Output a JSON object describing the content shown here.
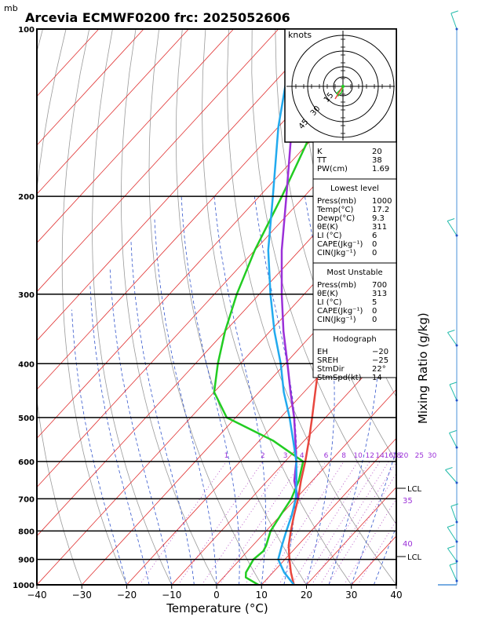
{
  "header": {
    "title": "Arcevia ECMWF0200 frc: 2025052606",
    "pressure_unit": "mb"
  },
  "axes": {
    "xlabel": "Temperature (°C)",
    "ylabel_right": "Mixing Ratio (g/kg)",
    "x_ticks": [
      -40,
      -30,
      -20,
      -10,
      0,
      10,
      20,
      30,
      40
    ],
    "p_ticks": [
      100,
      200,
      300,
      400,
      500,
      600,
      700,
      800,
      900,
      1000
    ],
    "p_tick_labels": [
      "100",
      "200",
      "300",
      "400",
      "500",
      "600",
      "700",
      "800",
      "900",
      "1000"
    ],
    "x_tick_labels": [
      "−40",
      "−30",
      "−20",
      "−10",
      "0",
      "10",
      "20",
      "30",
      "40"
    ]
  },
  "hodograph": {
    "units_label": "knots",
    "ring_labels": [
      "15",
      "30",
      "45"
    ]
  },
  "indices": {
    "basic": [
      {
        "label": "K",
        "value": "20"
      },
      {
        "label": "TT",
        "value": "38"
      },
      {
        "label": "PW(cm)",
        "value": "1.69"
      }
    ],
    "lowest_level": {
      "title": "Lowest level",
      "rows": [
        {
          "label": "Press(mb)",
          "value": "1000"
        },
        {
          "label": "Temp(°C)",
          "value": "17.2"
        },
        {
          "label": "Dewp(°C)",
          "value": "9.3"
        },
        {
          "label": "θE(K)",
          "value": "311"
        },
        {
          "label": "LI (°C)",
          "value": "6"
        },
        {
          "label": "CAPE(Jkg⁻¹)",
          "value": "0"
        },
        {
          "label": "CIN(Jkg⁻¹)",
          "value": "0"
        }
      ]
    },
    "most_unstable": {
      "title": "Most Unstable",
      "rows": [
        {
          "label": "Press(mb)",
          "value": "700"
        },
        {
          "label": "θE(K)",
          "value": "313"
        },
        {
          "label": "LI (°C)",
          "value": "5"
        },
        {
          "label": "CAPE(Jkg⁻¹)",
          "value": "0"
        },
        {
          "label": "CIN(Jkg⁻¹)",
          "value": "0"
        }
      ]
    },
    "hodograph_params": {
      "title": "Hodograph",
      "rows": [
        {
          "label": "EH",
          "value": "−20"
        },
        {
          "label": "SREH",
          "value": "−25"
        },
        {
          "label": "StmDir",
          "value": "22°"
        },
        {
          "label": "StmSpd(kt)",
          "value": "14"
        }
      ]
    }
  },
  "side_labels": {
    "lcl_upper": "LCL",
    "lcl_lower": "LCL",
    "theta_35": "35",
    "theta_40": "40"
  },
  "chart_data": {
    "type": "line",
    "title": "Arcevia ECMWF0200 frc: 2025052606",
    "xlabel": "Temperature (°C)",
    "ylabel": "mb",
    "xlim": [
      -40,
      40
    ],
    "ylim": [
      1000,
      100
    ],
    "y_scale": "log",
    "mixing_ratio_labels": [
      "1",
      "2",
      "3",
      "4",
      "6",
      "8",
      "10",
      "12",
      "14",
      "16",
      "18",
      "20",
      "25",
      "30"
    ],
    "series": [
      {
        "role": "temperature",
        "color": "#e8463e",
        "points": [
          [
            1000,
            17.2
          ],
          [
            950,
            14
          ],
          [
            900,
            11
          ],
          [
            850,
            8
          ],
          [
            800,
            5.5
          ],
          [
            750,
            3
          ],
          [
            700,
            0.5
          ],
          [
            650,
            -2.5
          ],
          [
            600,
            -5.5
          ],
          [
            550,
            -9
          ],
          [
            500,
            -13
          ],
          [
            450,
            -17.5
          ],
          [
            400,
            -22.5
          ],
          [
            350,
            -28
          ],
          [
            300,
            -34
          ],
          [
            275,
            -38
          ],
          [
            250,
            -41.5
          ],
          [
            230,
            -39
          ],
          [
            200,
            -36
          ],
          [
            150,
            -28
          ],
          [
            120,
            -23
          ],
          [
            100,
            -19
          ]
        ]
      },
      {
        "role": "dewpoint",
        "color": "#22cc22",
        "points": [
          [
            1000,
            9.3
          ],
          [
            970,
            5
          ],
          [
            950,
            4
          ],
          [
            900,
            3
          ],
          [
            870,
            3.5
          ],
          [
            850,
            3
          ],
          [
            800,
            1
          ],
          [
            750,
            0
          ],
          [
            700,
            -1
          ],
          [
            650,
            -3
          ],
          [
            600,
            -6
          ],
          [
            550,
            -17
          ],
          [
            500,
            -32
          ],
          [
            450,
            -40
          ],
          [
            400,
            -45
          ],
          [
            350,
            -50
          ],
          [
            300,
            -55
          ],
          [
            250,
            -60
          ],
          [
            200,
            -65
          ],
          [
            150,
            -72
          ],
          [
            100,
            -80
          ]
        ]
      },
      {
        "role": "parcel",
        "color": "#9b30d8",
        "points": [
          [
            700,
            0.5
          ],
          [
            650,
            -4
          ],
          [
            600,
            -7.5
          ],
          [
            550,
            -12
          ],
          [
            500,
            -17
          ],
          [
            450,
            -23
          ],
          [
            400,
            -29.5
          ],
          [
            350,
            -37
          ],
          [
            300,
            -45
          ],
          [
            250,
            -54
          ],
          [
            200,
            -64
          ],
          [
            150,
            -77
          ],
          [
            130,
            -84
          ],
          [
            115,
            -90
          ]
        ]
      },
      {
        "role": "surface_parcel",
        "color": "#22aaee",
        "points": [
          [
            1000,
            17.2
          ],
          [
            950,
            12.5
          ],
          [
            900,
            8.5
          ],
          [
            850,
            6.5
          ],
          [
            800,
            4.5
          ],
          [
            750,
            2.5
          ],
          [
            700,
            0
          ],
          [
            650,
            -3.5
          ],
          [
            600,
            -7.5
          ],
          [
            550,
            -12.5
          ],
          [
            500,
            -18
          ],
          [
            450,
            -24.5
          ],
          [
            400,
            -31
          ],
          [
            350,
            -39
          ],
          [
            300,
            -47.5
          ],
          [
            250,
            -57
          ],
          [
            200,
            -67
          ],
          [
            150,
            -80
          ],
          [
            120,
            -89
          ],
          [
            110,
            -93
          ]
        ]
      }
    ],
    "hodograph_points": [
      [
        0,
        0
      ],
      [
        -3,
        -4
      ],
      [
        -8,
        -9
      ],
      [
        -6,
        -12
      ],
      [
        -2,
        -8
      ],
      [
        0,
        -2
      ]
    ]
  }
}
